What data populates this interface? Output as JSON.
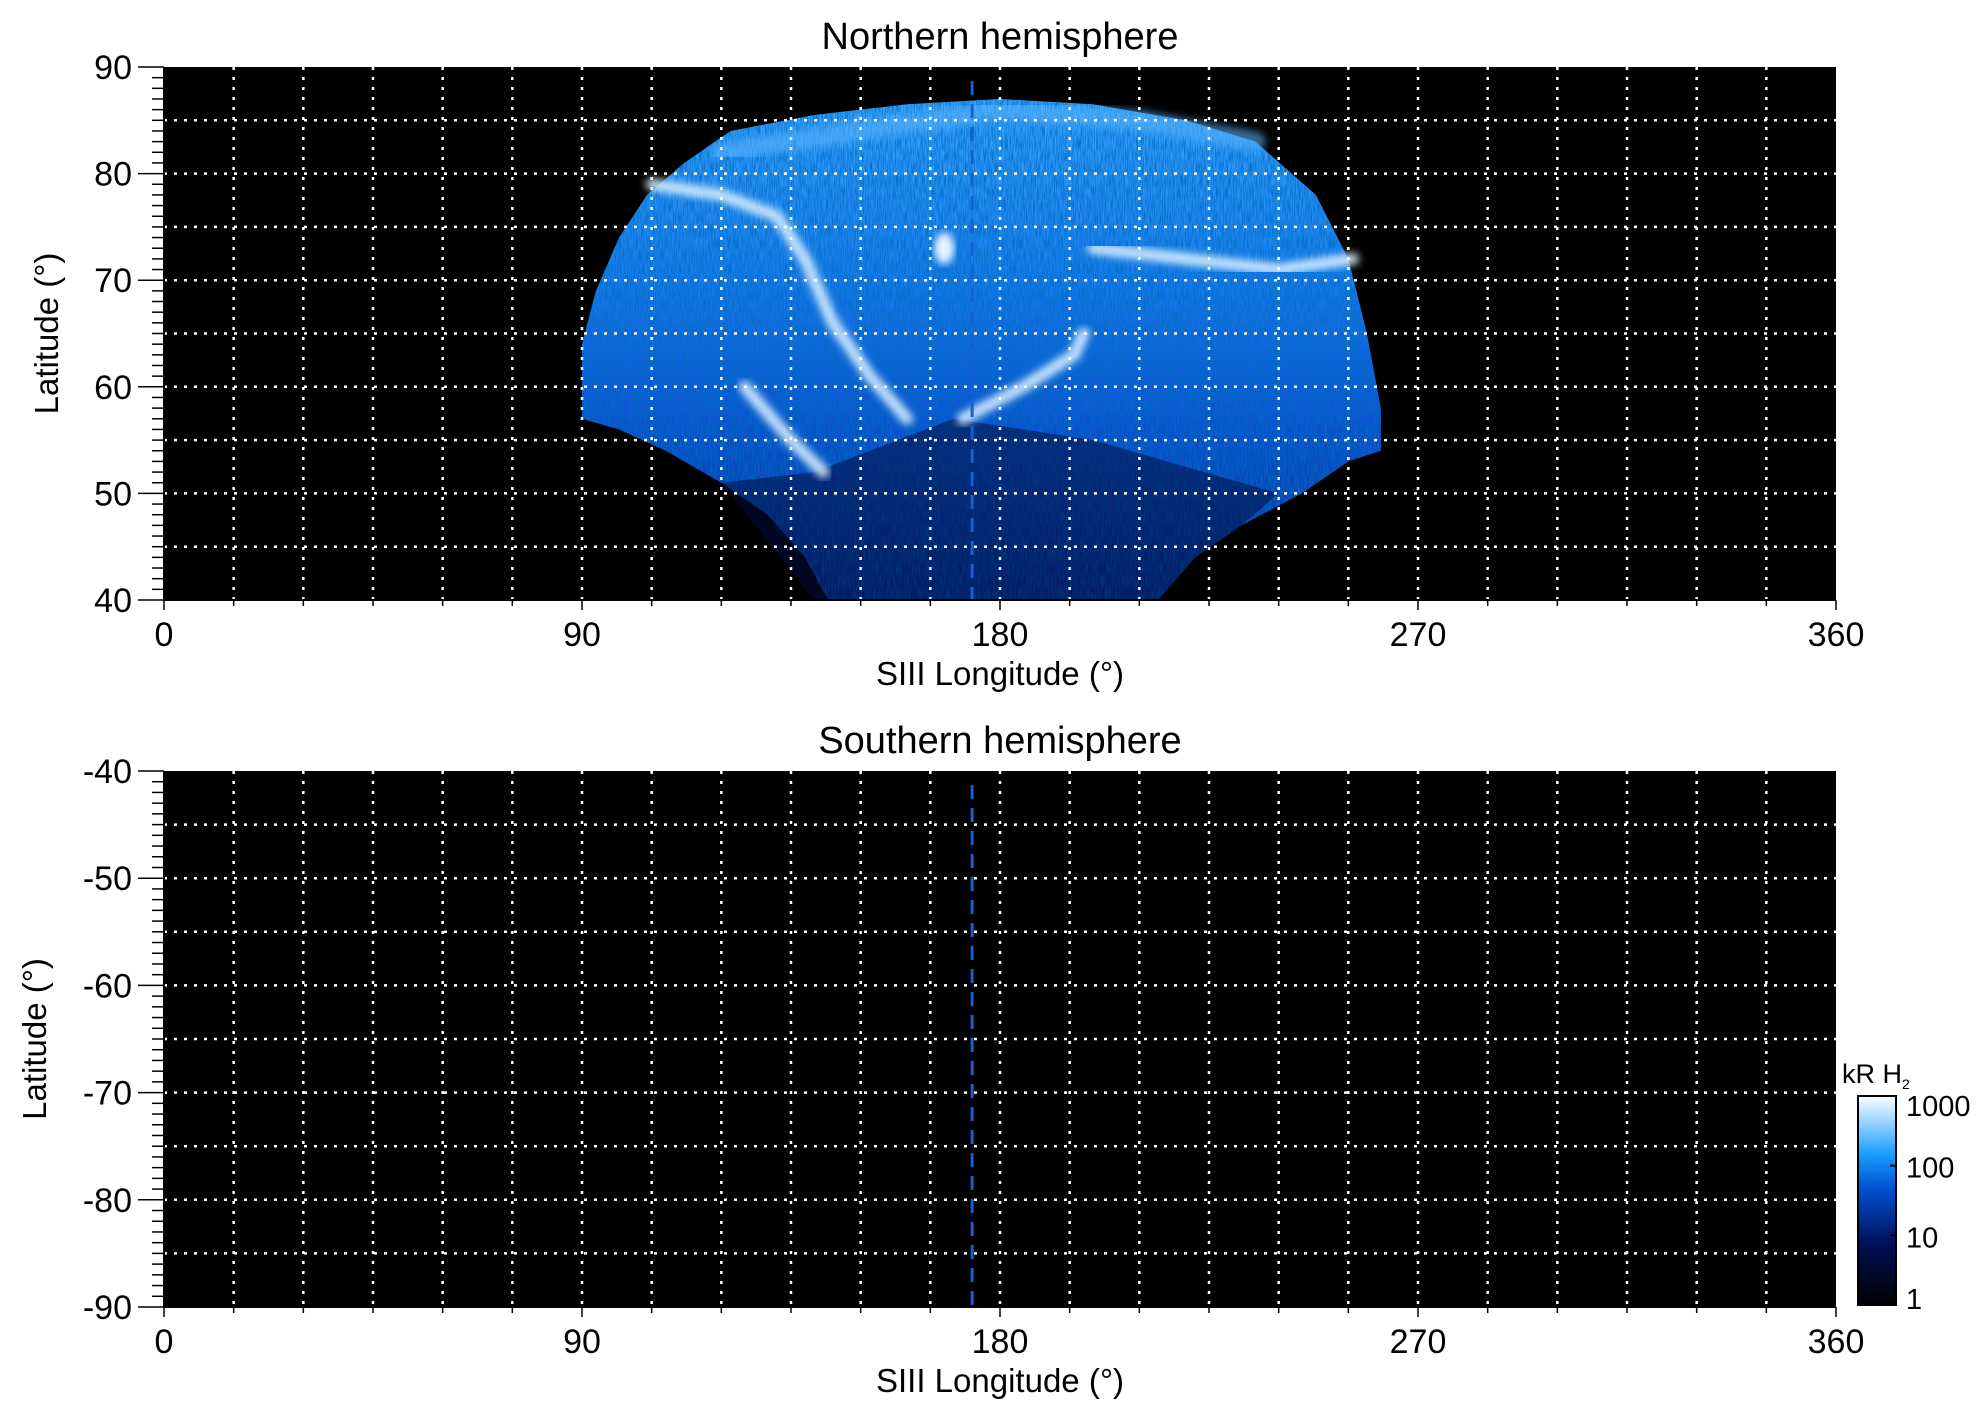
{
  "chart_data": [
    {
      "type": "heatmap",
      "title": "Northern hemisphere",
      "xlabel": "SIII Longitude (°)",
      "ylabel": "Latitude (°)",
      "xlim": [
        0,
        360
      ],
      "ylim": [
        40,
        90
      ],
      "xticks": [
        "0",
        "90",
        "180",
        "270",
        "360"
      ],
      "yticks": [
        "40",
        "50",
        "60",
        "70",
        "80",
        "90"
      ],
      "grid": true,
      "grid_longitude_step": 15,
      "grid_latitude_step": 5,
      "reference_longitude": 174,
      "background": "#000000"
    },
    {
      "type": "heatmap",
      "title": "Southern hemisphere",
      "xlabel": "SIII Longitude (°)",
      "ylabel": "Latitude (°)",
      "xlim": [
        0,
        360
      ],
      "ylim": [
        -90,
        -40
      ],
      "xticks": [
        "0",
        "90",
        "180",
        "270",
        "360"
      ],
      "yticks": [
        "-90",
        "-80",
        "-70",
        "-60",
        "-50",
        "-40"
      ],
      "grid": true,
      "grid_longitude_step": 15,
      "grid_latitude_step": 5,
      "reference_longitude": 174,
      "background": "#000000"
    }
  ],
  "colorbar": {
    "label": "kR H",
    "label_subscript": "2",
    "scale": "log",
    "range": [
      1,
      1000
    ],
    "ticks": [
      "1",
      "10",
      "100",
      "1000"
    ],
    "colors": [
      "#000000",
      "#00105a",
      "#0050d0",
      "#1a9cff",
      "#ffffff"
    ]
  },
  "colors": {
    "grid": "#ffffff",
    "reference_line": "#1560d0"
  }
}
